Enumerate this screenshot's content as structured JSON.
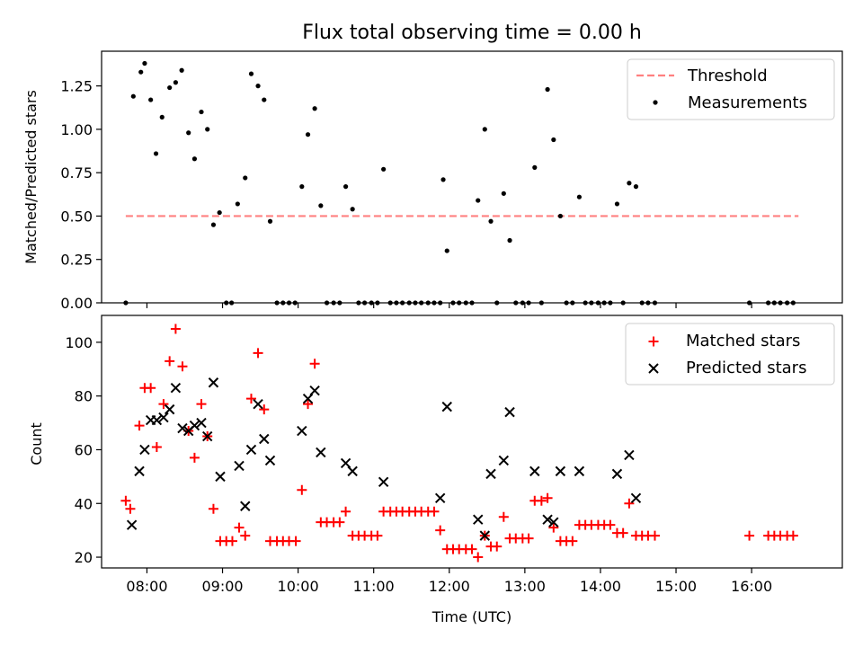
{
  "chart_data": [
    {
      "type": "scatter",
      "title": "Flux total observing time = 0.00 h",
      "xlabel": "",
      "ylabel": "Matched/Predicted stars",
      "xlim": [
        7.4,
        17.2
      ],
      "ylim": [
        0,
        1.45
      ],
      "yticks": [
        0.0,
        0.25,
        0.5,
        0.75,
        1.0,
        1.25
      ],
      "ytick_labels": [
        "0.00",
        "0.25",
        "0.50",
        "0.75",
        "1.00",
        "1.25"
      ],
      "legend_position": "top-right",
      "threshold": {
        "name": "Threshold",
        "value": 0.5,
        "x": [
          7.72,
          16.62
        ],
        "color": "#ff8080"
      },
      "series": [
        {
          "name": "Measurements",
          "color": "#000000",
          "marker": "dot",
          "points": [
            [
              7.72,
              0.0
            ],
            [
              7.82,
              1.19
            ],
            [
              7.92,
              1.33
            ],
            [
              7.97,
              1.38
            ],
            [
              8.05,
              1.17
            ],
            [
              8.12,
              0.86
            ],
            [
              8.2,
              1.07
            ],
            [
              8.3,
              1.24
            ],
            [
              8.38,
              1.27
            ],
            [
              8.46,
              1.34
            ],
            [
              8.55,
              0.98
            ],
            [
              8.63,
              0.83
            ],
            [
              8.72,
              1.1
            ],
            [
              8.8,
              1.0
            ],
            [
              8.88,
              0.45
            ],
            [
              8.96,
              0.52
            ],
            [
              9.05,
              0.0
            ],
            [
              9.12,
              0.0
            ],
            [
              9.2,
              0.57
            ],
            [
              9.3,
              0.72
            ],
            [
              9.38,
              1.32
            ],
            [
              9.47,
              1.25
            ],
            [
              9.55,
              1.17
            ],
            [
              9.63,
              0.47
            ],
            [
              9.72,
              0.0
            ],
            [
              9.8,
              0.0
            ],
            [
              9.88,
              0.0
            ],
            [
              9.96,
              0.0
            ],
            [
              10.05,
              0.67
            ],
            [
              10.13,
              0.97
            ],
            [
              10.22,
              1.12
            ],
            [
              10.3,
              0.56
            ],
            [
              10.38,
              0.0
            ],
            [
              10.47,
              0.0
            ],
            [
              10.55,
              0.0
            ],
            [
              10.63,
              0.67
            ],
            [
              10.72,
              0.54
            ],
            [
              10.8,
              0.0
            ],
            [
              10.88,
              0.0
            ],
            [
              10.97,
              0.0
            ],
            [
              11.05,
              0.0
            ],
            [
              11.13,
              0.77
            ],
            [
              11.22,
              0.0
            ],
            [
              11.3,
              0.0
            ],
            [
              11.38,
              0.0
            ],
            [
              11.47,
              0.0
            ],
            [
              11.55,
              0.0
            ],
            [
              11.63,
              0.0
            ],
            [
              11.72,
              0.0
            ],
            [
              11.8,
              0.0
            ],
            [
              11.88,
              0.0
            ],
            [
              11.92,
              0.71
            ],
            [
              11.97,
              0.3
            ],
            [
              12.05,
              0.0
            ],
            [
              12.13,
              0.0
            ],
            [
              12.22,
              0.0
            ],
            [
              12.3,
              0.0
            ],
            [
              12.38,
              0.59
            ],
            [
              12.47,
              1.0
            ],
            [
              12.55,
              0.47
            ],
            [
              12.63,
              0.0
            ],
            [
              12.72,
              0.63
            ],
            [
              12.8,
              0.36
            ],
            [
              12.88,
              0.0
            ],
            [
              12.97,
              0.0
            ],
            [
              13.05,
              0.0
            ],
            [
              13.13,
              0.78
            ],
            [
              13.22,
              0.0
            ],
            [
              13.3,
              1.23
            ],
            [
              13.38,
              0.94
            ],
            [
              13.47,
              0.5
            ],
            [
              13.55,
              0.0
            ],
            [
              13.63,
              0.0
            ],
            [
              13.72,
              0.61
            ],
            [
              13.8,
              0.0
            ],
            [
              13.88,
              0.0
            ],
            [
              13.97,
              0.0
            ],
            [
              14.05,
              0.0
            ],
            [
              14.13,
              0.0
            ],
            [
              14.22,
              0.57
            ],
            [
              14.3,
              0.0
            ],
            [
              14.38,
              0.69
            ],
            [
              14.47,
              0.67
            ],
            [
              14.55,
              0.0
            ],
            [
              14.63,
              0.0
            ],
            [
              14.72,
              0.0
            ],
            [
              15.97,
              0.0
            ],
            [
              16.22,
              0.0
            ],
            [
              16.3,
              0.0
            ],
            [
              16.38,
              0.0
            ],
            [
              16.47,
              0.0
            ],
            [
              16.55,
              0.0
            ]
          ]
        }
      ]
    },
    {
      "type": "scatter",
      "title": "",
      "xlabel": "Time (UTC)",
      "ylabel": "Count",
      "xlim": [
        7.4,
        17.2
      ],
      "ylim": [
        16,
        110
      ],
      "yticks": [
        20,
        40,
        60,
        80,
        100
      ],
      "ytick_labels": [
        "20",
        "40",
        "60",
        "80",
        "100"
      ],
      "xticks": [
        8,
        9,
        10,
        11,
        12,
        13,
        14,
        15,
        16
      ],
      "xtick_labels": [
        "08:00",
        "09:00",
        "10:00",
        "11:00",
        "12:00",
        "13:00",
        "14:00",
        "15:00",
        "16:00"
      ],
      "legend_position": "top-right",
      "series": [
        {
          "name": "Matched stars",
          "color": "#ff0000",
          "marker": "plus",
          "points": [
            [
              7.72,
              41
            ],
            [
              7.78,
              38
            ],
            [
              7.9,
              69
            ],
            [
              7.97,
              83
            ],
            [
              8.05,
              83
            ],
            [
              8.13,
              61
            ],
            [
              8.22,
              77
            ],
            [
              8.3,
              93
            ],
            [
              8.38,
              105
            ],
            [
              8.47,
              91
            ],
            [
              8.55,
              67
            ],
            [
              8.63,
              57
            ],
            [
              8.72,
              77
            ],
            [
              8.8,
              65
            ],
            [
              8.88,
              38
            ],
            [
              8.97,
              26
            ],
            [
              9.05,
              26
            ],
            [
              9.13,
              26
            ],
            [
              9.22,
              31
            ],
            [
              9.3,
              28
            ],
            [
              9.38,
              79
            ],
            [
              9.47,
              96
            ],
            [
              9.55,
              75
            ],
            [
              9.63,
              26
            ],
            [
              9.72,
              26
            ],
            [
              9.8,
              26
            ],
            [
              9.88,
              26
            ],
            [
              9.97,
              26
            ],
            [
              10.05,
              45
            ],
            [
              10.13,
              77
            ],
            [
              10.22,
              92
            ],
            [
              10.3,
              33
            ],
            [
              10.38,
              33
            ],
            [
              10.47,
              33
            ],
            [
              10.55,
              33
            ],
            [
              10.63,
              37
            ],
            [
              10.72,
              28
            ],
            [
              10.8,
              28
            ],
            [
              10.88,
              28
            ],
            [
              10.97,
              28
            ],
            [
              11.05,
              28
            ],
            [
              11.13,
              37
            ],
            [
              11.22,
              37
            ],
            [
              11.3,
              37
            ],
            [
              11.38,
              37
            ],
            [
              11.47,
              37
            ],
            [
              11.55,
              37
            ],
            [
              11.63,
              37
            ],
            [
              11.72,
              37
            ],
            [
              11.8,
              37
            ],
            [
              11.88,
              30
            ],
            [
              11.97,
              23
            ],
            [
              12.05,
              23
            ],
            [
              12.13,
              23
            ],
            [
              12.22,
              23
            ],
            [
              12.3,
              23
            ],
            [
              12.38,
              20
            ],
            [
              12.47,
              28
            ],
            [
              12.55,
              24
            ],
            [
              12.63,
              24
            ],
            [
              12.72,
              35
            ],
            [
              12.8,
              27
            ],
            [
              12.88,
              27
            ],
            [
              12.97,
              27
            ],
            [
              13.05,
              27
            ],
            [
              13.13,
              41
            ],
            [
              13.22,
              41
            ],
            [
              13.3,
              42
            ],
            [
              13.38,
              31
            ],
            [
              13.47,
              26
            ],
            [
              13.55,
              26
            ],
            [
              13.63,
              26
            ],
            [
              13.72,
              32
            ],
            [
              13.8,
              32
            ],
            [
              13.88,
              32
            ],
            [
              13.97,
              32
            ],
            [
              14.05,
              32
            ],
            [
              14.13,
              32
            ],
            [
              14.22,
              29
            ],
            [
              14.3,
              29
            ],
            [
              14.38,
              40
            ],
            [
              14.47,
              28
            ],
            [
              14.55,
              28
            ],
            [
              14.63,
              28
            ],
            [
              14.72,
              28
            ],
            [
              15.97,
              28
            ],
            [
              16.22,
              28
            ],
            [
              16.3,
              28
            ],
            [
              16.38,
              28
            ],
            [
              16.47,
              28
            ],
            [
              16.55,
              28
            ]
          ]
        },
        {
          "name": "Predicted stars",
          "color": "#000000",
          "marker": "x",
          "points": [
            [
              7.8,
              32
            ],
            [
              7.9,
              52
            ],
            [
              7.97,
              60
            ],
            [
              8.05,
              71
            ],
            [
              8.13,
              71
            ],
            [
              8.22,
              72
            ],
            [
              8.3,
              75
            ],
            [
              8.38,
              83
            ],
            [
              8.47,
              68
            ],
            [
              8.55,
              67
            ],
            [
              8.63,
              69
            ],
            [
              8.72,
              70
            ],
            [
              8.8,
              65
            ],
            [
              8.88,
              85
            ],
            [
              8.97,
              50
            ],
            [
              9.22,
              54
            ],
            [
              9.3,
              39
            ],
            [
              9.38,
              60
            ],
            [
              9.47,
              77
            ],
            [
              9.55,
              64
            ],
            [
              9.63,
              56
            ],
            [
              10.05,
              67
            ],
            [
              10.13,
              79
            ],
            [
              10.22,
              82
            ],
            [
              10.3,
              59
            ],
            [
              10.63,
              55
            ],
            [
              10.72,
              52
            ],
            [
              11.13,
              48
            ],
            [
              11.88,
              42
            ],
            [
              11.97,
              76
            ],
            [
              12.38,
              34
            ],
            [
              12.47,
              28
            ],
            [
              12.55,
              51
            ],
            [
              12.72,
              56
            ],
            [
              12.8,
              74
            ],
            [
              13.13,
              52
            ],
            [
              13.3,
              34
            ],
            [
              13.38,
              33
            ],
            [
              13.47,
              52
            ],
            [
              13.72,
              52
            ],
            [
              14.22,
              51
            ],
            [
              14.38,
              58
            ],
            [
              14.47,
              42
            ]
          ]
        }
      ]
    }
  ]
}
